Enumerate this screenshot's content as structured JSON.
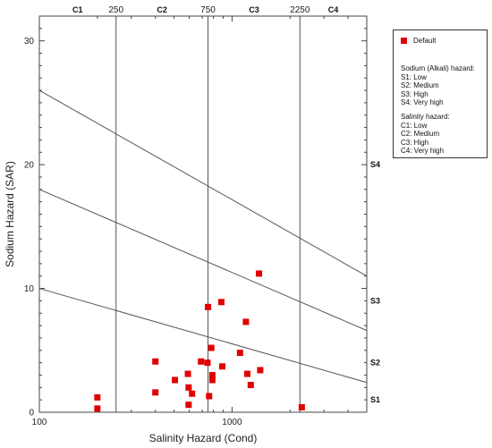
{
  "chart_data": {
    "type": "scatter",
    "xscale": "log",
    "xlim": [
      100,
      5000
    ],
    "ylim": [
      0,
      32
    ],
    "xlabel": "Salinity Hazard (Cond)",
    "ylabel": "Sodium Hazard (SAR)",
    "x_tick_labels": [
      {
        "value": 100,
        "label": "100"
      },
      {
        "value": 1000,
        "label": "1000"
      }
    ],
    "y_tick_labels": [
      {
        "value": 0,
        "label": "0"
      },
      {
        "value": 10,
        "label": "10"
      },
      {
        "value": 20,
        "label": "20"
      },
      {
        "value": 30,
        "label": "30"
      }
    ],
    "salinity_boundaries": [
      {
        "value": 250,
        "label": "250"
      },
      {
        "value": 750,
        "label": "750"
      },
      {
        "value": 2250,
        "label": "2250"
      }
    ],
    "salinity_classes": [
      {
        "label": "C1",
        "center": 158
      },
      {
        "label": "C2",
        "center": 433
      },
      {
        "label": "C3",
        "center": 1300
      },
      {
        "label": "C4",
        "center": 3350
      }
    ],
    "sodium_boundary_lines": [
      {
        "from": [
          100,
          10
        ],
        "to": [
          5000,
          2.4
        ]
      },
      {
        "from": [
          100,
          18
        ],
        "to": [
          5000,
          6.6
        ]
      },
      {
        "from": [
          100,
          26
        ],
        "to": [
          5000,
          11
        ]
      }
    ],
    "sodium_classes": [
      {
        "label": "S1",
        "y": 1
      },
      {
        "label": "S2",
        "y": 4
      },
      {
        "label": "S3",
        "y": 9
      },
      {
        "label": "S4",
        "y": 20
      }
    ],
    "series": [
      {
        "name": "Default",
        "color": "#e00000",
        "points": [
          {
            "x": 200,
            "y": 1.2
          },
          {
            "x": 200,
            "y": 0.3
          },
          {
            "x": 400,
            "y": 4.1
          },
          {
            "x": 400,
            "y": 1.6
          },
          {
            "x": 505,
            "y": 2.6
          },
          {
            "x": 590,
            "y": 3.1
          },
          {
            "x": 595,
            "y": 2.0
          },
          {
            "x": 620,
            "y": 1.5
          },
          {
            "x": 595,
            "y": 0.6
          },
          {
            "x": 690,
            "y": 4.1
          },
          {
            "x": 745,
            "y": 4.0
          },
          {
            "x": 760,
            "y": 1.3
          },
          {
            "x": 750,
            "y": 8.5
          },
          {
            "x": 780,
            "y": 5.2
          },
          {
            "x": 790,
            "y": 3.0
          },
          {
            "x": 790,
            "y": 2.6
          },
          {
            "x": 880,
            "y": 8.9
          },
          {
            "x": 890,
            "y": 3.7
          },
          {
            "x": 1100,
            "y": 4.8
          },
          {
            "x": 1180,
            "y": 7.3
          },
          {
            "x": 1200,
            "y": 3.1
          },
          {
            "x": 1250,
            "y": 2.2
          },
          {
            "x": 1380,
            "y": 11.2
          },
          {
            "x": 1400,
            "y": 3.4
          },
          {
            "x": 2300,
            "y": 0.4
          }
        ]
      }
    ]
  },
  "legend": {
    "series_label": "Default",
    "sodium_title": "Sodium (Alkali) hazard:",
    "sodium_items": [
      "S1: Low",
      "S2: Medium",
      "S3: High",
      "S4: Very high"
    ],
    "salinity_title": "Salinity hazard:",
    "salinity_items": [
      "C1: Low",
      "C2: Medium",
      "C3: High",
      "C4: Very high"
    ]
  }
}
